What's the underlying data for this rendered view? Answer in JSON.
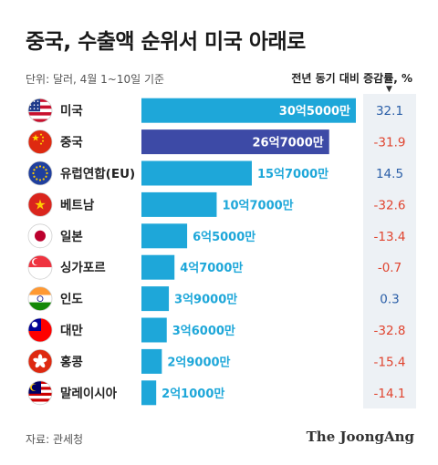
{
  "title": "중국, 수출액 순위서 미국 아래로",
  "subtitle": "단위: 달러, 4월 1~10일 기준",
  "change_header": "전년 동기 대비 증감률, %",
  "source": "자료: 관세청",
  "logo": "The JoongAng",
  "colors": {
    "bar": "#1ea7d9",
    "bar_highlight": "#3d4aa6",
    "increase": "#2b5fa8",
    "decrease": "#e0442f",
    "change_bg": "#edf1f5"
  },
  "chart_data": {
    "type": "bar",
    "orientation": "horizontal",
    "unit": "달러",
    "categories": [
      "미국",
      "중국",
      "유럽연합(EU)",
      "베트남",
      "일본",
      "싱가포르",
      "인도",
      "대만",
      "홍콩",
      "말레이시아"
    ],
    "values": [
      3050000000,
      2670000000,
      1570000000,
      1070000000,
      650000000,
      470000000,
      390000000,
      360000000,
      290000000,
      210000000
    ],
    "value_labels": [
      "30억5000만",
      "26억7000만",
      "15억7000만",
      "10억7000만",
      "6억5000만",
      "4억7000만",
      "3억9000만",
      "3억6000만",
      "2억9000만",
      "2억1000만"
    ],
    "change_pct": [
      32.1,
      -31.9,
      14.5,
      -32.6,
      -13.4,
      -0.7,
      0.3,
      -32.8,
      -15.4,
      -14.1
    ],
    "change_labels": [
      "32.1",
      "-31.9",
      "14.5",
      "-32.6",
      "-13.4",
      "-0.7",
      "0.3",
      "-32.8",
      "-15.4",
      "-14.1"
    ],
    "highlight_index": 1,
    "flags": [
      "us-flag-icon",
      "china-flag-icon",
      "eu-flag-icon",
      "vietnam-flag-icon",
      "japan-flag-icon",
      "singapore-flag-icon",
      "india-flag-icon",
      "taiwan-flag-icon",
      "hongkong-flag-icon",
      "malaysia-flag-icon"
    ],
    "xlim": [
      0,
      3050000000
    ]
  }
}
